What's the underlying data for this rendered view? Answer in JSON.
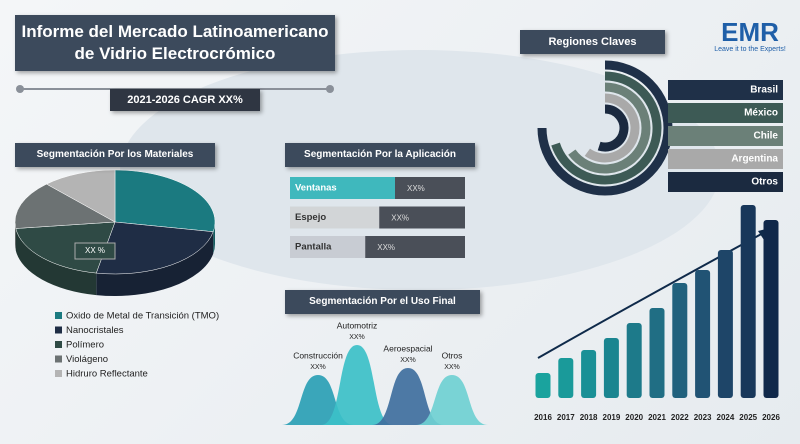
{
  "header": {
    "title": "Informe del Mercado Latinoamericano de Vidrio Electrocrómico",
    "cagr": "2021-2026 CAGR XX%"
  },
  "logo": {
    "name": "EMR",
    "tagline": "Leave it to the Experts!"
  },
  "chart_data": [
    {
      "type": "pie",
      "title": "Segmentación Por los Materiales",
      "categories": [
        "Oxido de Metal de Transición (TMO)",
        "Nanocristales",
        "Polímero",
        "Violágeno",
        "Hidruro Reflectante"
      ],
      "values": [
        28,
        25,
        20,
        15,
        12
      ],
      "colors": [
        "#1b7a80",
        "#1f2d45",
        "#2f4a45",
        "#6c7273",
        "#b4b4b4"
      ],
      "center_label": "XX %"
    },
    {
      "type": "hbar",
      "title": "Segmentación Por la Aplicación",
      "categories": [
        "Ventanas",
        "Espejo",
        "Pantalla"
      ],
      "values": [
        60,
        51,
        43
      ],
      "value_labels": [
        "XX%",
        "XX%",
        "XX%"
      ],
      "xlim": [
        0,
        100
      ],
      "colors": [
        "#3fb8bd",
        "#d2d5d7",
        "#c8ccd3"
      ]
    },
    {
      "type": "bell",
      "title": "Segmentación Por el Uso Final",
      "categories": [
        "Construcción",
        "Automotriz",
        "Aeroespacial",
        "Otros"
      ],
      "values": [
        50,
        80,
        57,
        50
      ],
      "value_labels": [
        "XX%",
        "XX%",
        "XX%",
        "XX%"
      ],
      "ylim": [
        0,
        100
      ],
      "colors": [
        "#2a9fb5",
        "#3cc0c8",
        "#3f6f9e",
        "#6fd0d2"
      ]
    },
    {
      "type": "radial",
      "title": "Regiones Claves",
      "categories": [
        "Brasil",
        "México",
        "Chile",
        "Argentina",
        "Otros"
      ],
      "values": [
        75,
        70,
        65,
        60,
        55
      ],
      "ylim": [
        0,
        100
      ],
      "colors": [
        "#1f3048",
        "#3d5a55",
        "#6b8078",
        "#a9a9a9",
        "#1b2a40"
      ]
    },
    {
      "type": "column",
      "categories": [
        "2016",
        "2017",
        "2018",
        "2019",
        "2020",
        "2021",
        "2022",
        "2023",
        "2024",
        "2025",
        "2026"
      ],
      "values": [
        25,
        40,
        48,
        60,
        75,
        90,
        115,
        128,
        148,
        193,
        178
      ],
      "ylim": [
        0,
        200
      ],
      "colors": [
        "#1aa39e",
        "#1a9a9a",
        "#199096",
        "#1a8590",
        "#1d7a8a",
        "#206e84",
        "#21617d",
        "#215374",
        "#1e4568",
        "#18375a",
        "#10284a"
      ]
    }
  ]
}
